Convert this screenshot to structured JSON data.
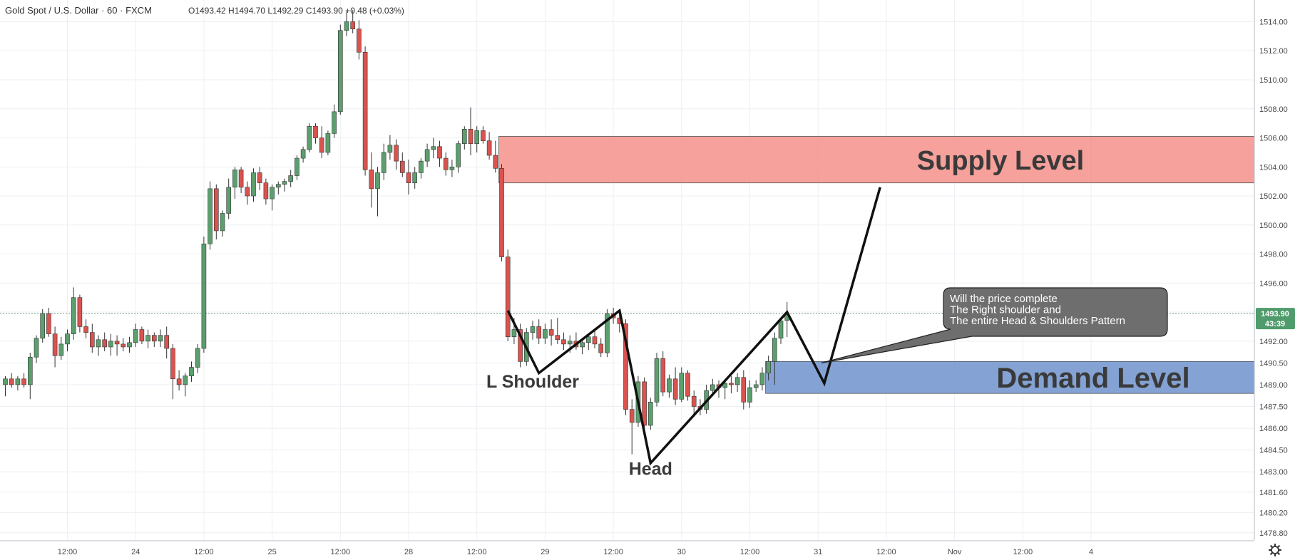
{
  "header": {
    "symbol": "Gold Spot  /  U.S. Dollar · 60 · FXCM",
    "ohlc": "O1493.42  H1494.70  L1492.29  C1493.90  +0.48 (+0.03%)"
  },
  "price_tag": {
    "price": "1493.90",
    "countdown": "43:39"
  },
  "colors": {
    "up": "#5c9f6e",
    "down": "#d9534f",
    "supply_zone": "#f4908a",
    "demand_zone": "#6f93cc",
    "grid": "#eceff3",
    "price_tag_bg": "#4f9b6b",
    "callout_bg": "#6e6e6e"
  },
  "icons": {
    "settings": "gear-icon"
  },
  "chart_data": {
    "type": "candlestick",
    "title": "Gold Spot / U.S. Dollar · 60 · FXCM",
    "ylim": [
      1478.3,
      1515.3
    ],
    "grid": true,
    "y_ticks": [
      "1514.00",
      "1512.00",
      "1510.00",
      "1508.00",
      "1506.00",
      "1504.00",
      "1502.00",
      "1500.00",
      "1498.00",
      "1496.00",
      "1494.00",
      "1492.00",
      "1490.50",
      "1489.00",
      "1487.50",
      "1486.00",
      "1484.50",
      "1483.00",
      "1481.60",
      "1480.20",
      "1478.80"
    ],
    "x_ticks": [
      {
        "label": "12:00",
        "bar": 10
      },
      {
        "label": "24",
        "bar": 21
      },
      {
        "label": "12:00",
        "bar": 32
      },
      {
        "label": "25",
        "bar": 43
      },
      {
        "label": "12:00",
        "bar": 54
      },
      {
        "label": "28",
        "bar": 65
      },
      {
        "label": "12:00",
        "bar": 76
      },
      {
        "label": "29",
        "bar": 87
      },
      {
        "label": "12:00",
        "bar": 98
      },
      {
        "label": "30",
        "bar": 109
      },
      {
        "label": "12:00",
        "bar": 120
      },
      {
        "label": "31",
        "bar": 131
      },
      {
        "label": "12:00",
        "bar": 142
      },
      {
        "label": "Nov",
        "bar": 153
      },
      {
        "label": "12:00",
        "bar": 164
      },
      {
        "label": "4",
        "bar": 175
      }
    ],
    "ohlc": [
      [
        1489.0,
        1489.6,
        1488.2,
        1489.4
      ],
      [
        1489.4,
        1489.8,
        1488.8,
        1489.0
      ],
      [
        1489.0,
        1489.6,
        1488.6,
        1489.4
      ],
      [
        1489.4,
        1489.8,
        1488.8,
        1489.0
      ],
      [
        1489.0,
        1491.2,
        1488.0,
        1490.9
      ],
      [
        1490.9,
        1492.4,
        1490.5,
        1492.2
      ],
      [
        1492.2,
        1494.2,
        1491.9,
        1493.9
      ],
      [
        1493.9,
        1494.3,
        1492.3,
        1492.5
      ],
      [
        1492.5,
        1493.0,
        1490.2,
        1491.0
      ],
      [
        1491.0,
        1492.3,
        1490.7,
        1491.8
      ],
      [
        1491.8,
        1492.8,
        1491.3,
        1492.5
      ],
      [
        1492.5,
        1495.7,
        1492.1,
        1495.0
      ],
      [
        1495.0,
        1495.2,
        1492.6,
        1493.0
      ],
      [
        1493.0,
        1493.5,
        1492.2,
        1492.6
      ],
      [
        1492.6,
        1493.2,
        1491.2,
        1491.6
      ],
      [
        1491.6,
        1492.4,
        1491.0,
        1492.1
      ],
      [
        1492.1,
        1492.6,
        1491.3,
        1491.6
      ],
      [
        1491.6,
        1492.5,
        1491.0,
        1492.0
      ],
      [
        1492.0,
        1492.4,
        1491.0,
        1491.8
      ],
      [
        1491.8,
        1492.2,
        1491.3,
        1491.6
      ],
      [
        1491.6,
        1492.3,
        1491.2,
        1491.9
      ],
      [
        1491.9,
        1493.2,
        1491.6,
        1492.8
      ],
      [
        1492.8,
        1493.0,
        1491.8,
        1492.0
      ],
      [
        1492.0,
        1492.8,
        1491.5,
        1492.4
      ],
      [
        1492.4,
        1492.6,
        1491.6,
        1492.0
      ],
      [
        1492.0,
        1492.8,
        1491.6,
        1492.4
      ],
      [
        1492.4,
        1493.0,
        1490.8,
        1491.5
      ],
      [
        1491.5,
        1491.8,
        1488.0,
        1489.4
      ],
      [
        1489.4,
        1490.0,
        1488.6,
        1489.0
      ],
      [
        1489.0,
        1489.8,
        1488.2,
        1489.6
      ],
      [
        1489.6,
        1490.6,
        1489.2,
        1490.2
      ],
      [
        1490.2,
        1491.8,
        1489.8,
        1491.5
      ],
      [
        1491.5,
        1499.2,
        1491.2,
        1498.7
      ],
      [
        1498.7,
        1503.0,
        1498.3,
        1502.5
      ],
      [
        1502.5,
        1502.8,
        1499.0,
        1499.6
      ],
      [
        1499.6,
        1501.0,
        1499.2,
        1500.8
      ],
      [
        1500.8,
        1503.2,
        1500.4,
        1502.6
      ],
      [
        1502.6,
        1504.0,
        1501.8,
        1503.8
      ],
      [
        1503.8,
        1504.0,
        1502.2,
        1502.6
      ],
      [
        1502.6,
        1503.0,
        1501.4,
        1502.0
      ],
      [
        1502.0,
        1503.9,
        1501.6,
        1503.6
      ],
      [
        1503.6,
        1504.0,
        1502.4,
        1502.9
      ],
      [
        1502.9,
        1503.2,
        1501.4,
        1501.8
      ],
      [
        1501.8,
        1502.8,
        1501.0,
        1502.6
      ],
      [
        1502.6,
        1503.0,
        1502.1,
        1502.8
      ],
      [
        1502.8,
        1503.2,
        1502.3,
        1503.0
      ],
      [
        1503.0,
        1503.8,
        1502.6,
        1503.4
      ],
      [
        1503.4,
        1504.8,
        1503.1,
        1504.6
      ],
      [
        1504.6,
        1505.4,
        1504.3,
        1505.2
      ],
      [
        1505.2,
        1507.0,
        1505.0,
        1506.8
      ],
      [
        1506.8,
        1507.0,
        1505.6,
        1506.0
      ],
      [
        1506.0,
        1506.8,
        1504.6,
        1505.0
      ],
      [
        1505.0,
        1506.5,
        1504.8,
        1506.3
      ],
      [
        1506.3,
        1508.3,
        1506.0,
        1507.8
      ],
      [
        1507.8,
        1513.8,
        1507.6,
        1513.4
      ],
      [
        1513.4,
        1514.7,
        1513.0,
        1514.0
      ],
      [
        1514.0,
        1514.8,
        1513.2,
        1513.5
      ],
      [
        1513.5,
        1514.1,
        1511.4,
        1511.9
      ],
      [
        1511.9,
        1512.3,
        1503.4,
        1503.8
      ],
      [
        1503.8,
        1505.0,
        1501.2,
        1502.5
      ],
      [
        1502.5,
        1504.0,
        1500.6,
        1503.6
      ],
      [
        1503.6,
        1505.6,
        1503.1,
        1505.0
      ],
      [
        1505.0,
        1506.2,
        1504.5,
        1505.5
      ],
      [
        1505.5,
        1505.9,
        1503.8,
        1504.4
      ],
      [
        1504.4,
        1505.0,
        1503.3,
        1503.6
      ],
      [
        1503.6,
        1504.5,
        1502.1,
        1502.9
      ],
      [
        1502.9,
        1504.0,
        1502.5,
        1503.6
      ],
      [
        1503.6,
        1504.6,
        1503.2,
        1504.4
      ],
      [
        1504.4,
        1505.6,
        1504.0,
        1505.2
      ],
      [
        1505.2,
        1506.0,
        1504.6,
        1505.4
      ],
      [
        1505.4,
        1505.8,
        1504.0,
        1504.6
      ],
      [
        1504.6,
        1505.0,
        1503.4,
        1503.8
      ],
      [
        1503.8,
        1504.5,
        1503.3,
        1504.0
      ],
      [
        1504.0,
        1505.8,
        1503.6,
        1505.6
      ],
      [
        1505.6,
        1506.8,
        1505.2,
        1506.6
      ],
      [
        1506.6,
        1508.1,
        1504.8,
        1505.6
      ],
      [
        1505.6,
        1506.8,
        1505.0,
        1506.5
      ],
      [
        1506.5,
        1506.8,
        1505.6,
        1505.8
      ],
      [
        1505.8,
        1506.4,
        1504.5,
        1504.8
      ],
      [
        1504.8,
        1505.8,
        1503.6,
        1503.9
      ],
      [
        1503.9,
        1504.2,
        1497.5,
        1497.8
      ],
      [
        1497.8,
        1498.3,
        1492.0,
        1492.3
      ],
      [
        1492.3,
        1493.6,
        1491.8,
        1492.8
      ],
      [
        1492.8,
        1493.2,
        1490.2,
        1490.6
      ],
      [
        1490.6,
        1492.9,
        1490.3,
        1492.6
      ],
      [
        1492.6,
        1493.4,
        1492.1,
        1493.0
      ],
      [
        1493.0,
        1493.5,
        1491.8,
        1492.2
      ],
      [
        1492.2,
        1493.2,
        1491.8,
        1492.8
      ],
      [
        1492.8,
        1493.5,
        1491.7,
        1492.4
      ],
      [
        1492.4,
        1493.6,
        1491.8,
        1492.1
      ],
      [
        1492.1,
        1492.6,
        1491.4,
        1491.8
      ],
      [
        1491.8,
        1492.4,
        1491.2,
        1492.0
      ],
      [
        1492.0,
        1492.6,
        1491.4,
        1491.6
      ],
      [
        1491.6,
        1492.2,
        1491.1,
        1491.9
      ],
      [
        1491.9,
        1492.5,
        1491.4,
        1492.3
      ],
      [
        1492.3,
        1492.8,
        1491.5,
        1491.8
      ],
      [
        1491.8,
        1492.2,
        1490.9,
        1491.2
      ],
      [
        1491.2,
        1494.2,
        1490.9,
        1493.9
      ],
      [
        1493.9,
        1494.3,
        1493.2,
        1493.6
      ],
      [
        1493.6,
        1493.8,
        1492.6,
        1493.2
      ],
      [
        1493.2,
        1493.5,
        1486.9,
        1487.3
      ],
      [
        1487.3,
        1488.0,
        1484.2,
        1486.4
      ],
      [
        1486.4,
        1489.6,
        1486.1,
        1489.2
      ],
      [
        1489.2,
        1489.5,
        1485.8,
        1486.2
      ],
      [
        1486.2,
        1488.1,
        1485.9,
        1487.8
      ],
      [
        1487.8,
        1491.2,
        1487.5,
        1490.8
      ],
      [
        1490.8,
        1491.3,
        1488.2,
        1488.5
      ],
      [
        1488.5,
        1489.7,
        1488.1,
        1489.4
      ],
      [
        1489.4,
        1490.2,
        1487.6,
        1488.0
      ],
      [
        1488.0,
        1490.2,
        1487.8,
        1489.8
      ],
      [
        1489.8,
        1490.0,
        1487.9,
        1488.2
      ],
      [
        1488.2,
        1488.6,
        1486.8,
        1487.5
      ],
      [
        1487.5,
        1488.0,
        1486.9,
        1487.3
      ],
      [
        1487.3,
        1489.0,
        1487.0,
        1488.6
      ],
      [
        1488.6,
        1489.4,
        1488.2,
        1489.0
      ],
      [
        1489.0,
        1489.3,
        1488.1,
        1488.8
      ],
      [
        1488.8,
        1489.4,
        1488.0,
        1489.1
      ],
      [
        1489.1,
        1489.6,
        1488.4,
        1489.0
      ],
      [
        1489.0,
        1489.8,
        1488.5,
        1489.5
      ],
      [
        1489.5,
        1490.0,
        1487.3,
        1487.8
      ],
      [
        1487.8,
        1489.3,
        1487.4,
        1488.8
      ],
      [
        1488.8,
        1489.3,
        1488.5,
        1489.0
      ],
      [
        1489.0,
        1490.2,
        1488.6,
        1489.8
      ],
      [
        1489.8,
        1491.0,
        1489.3,
        1490.6
      ],
      [
        1490.6,
        1492.6,
        1489.0,
        1492.2
      ],
      [
        1492.2,
        1493.6,
        1491.8,
        1493.4
      ],
      [
        1493.42,
        1494.7,
        1492.29,
        1493.9
      ]
    ],
    "zones": [
      {
        "name": "Supply Level",
        "from": 1502.9,
        "to": 1506.1,
        "start_bar": 80
      },
      {
        "name": "Demand Level",
        "from": 1488.4,
        "to": 1490.6,
        "start_bar": 123
      }
    ],
    "pattern_path": [
      {
        "bar": 81,
        "price": 1494.1
      },
      {
        "bar": 86,
        "price": 1489.8
      },
      {
        "bar": 99,
        "price": 1494.1
      },
      {
        "bar": 104,
        "price": 1483.6
      },
      {
        "bar": 126,
        "price": 1494.0
      },
      {
        "bar": 132,
        "price": 1489.1
      },
      {
        "bar": 141,
        "price": 1502.6
      }
    ],
    "labels": [
      {
        "text": "L Shoulder",
        "bar": 85,
        "price": 1488.8
      },
      {
        "text": "Head",
        "bar": 104,
        "price": 1482.8
      }
    ],
    "callout": {
      "lines": [
        "Will the price complete",
        "The Right shoulder and",
        "The entire Head & Shoulders Pattern"
      ],
      "anchor_bar": 132,
      "anchor_price": 1490.5
    }
  }
}
